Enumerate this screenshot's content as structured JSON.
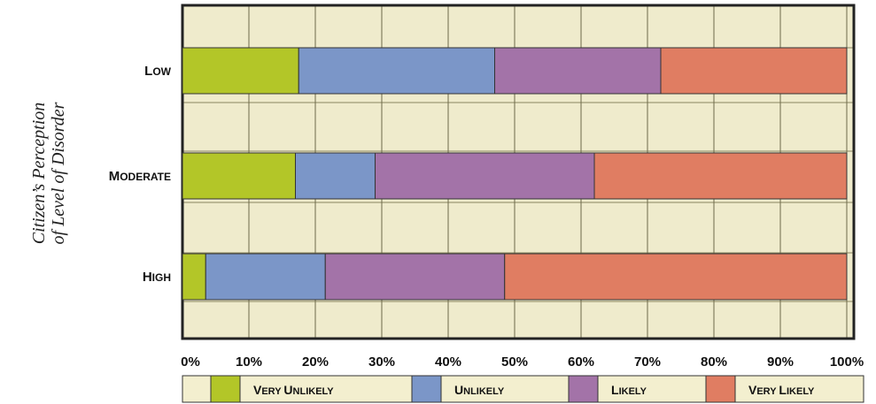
{
  "chart_data": {
    "type": "bar",
    "orientation": "horizontal",
    "stacked": true,
    "percent_stacked": true,
    "ylabel_lines": [
      "Citizen’s Perception",
      "of Level of Disorder"
    ],
    "categories": [
      "Low",
      "Moderate",
      "High"
    ],
    "series": [
      {
        "name": "Very Unlikely",
        "values": [
          17.5,
          17,
          3.5
        ]
      },
      {
        "name": "Unlikely",
        "values": [
          29.5,
          12,
          18
        ]
      },
      {
        "name": "Likely",
        "values": [
          25,
          33,
          27
        ]
      },
      {
        "name": "Very Likely",
        "values": [
          28,
          38,
          51.5
        ]
      }
    ],
    "xlim": [
      0,
      100
    ],
    "xticks": [
      "0%",
      "10%",
      "20%",
      "30%",
      "40%",
      "50%",
      "60%",
      "70%",
      "80%",
      "90%",
      "100%"
    ],
    "grid": true,
    "legend_position": "bottom",
    "colors": {
      "series": [
        "#b3c628",
        "#7b96c8",
        "#a373a8",
        "#e07d62"
      ],
      "plot_background": "#efebcc",
      "legend_background": "#f3efcf",
      "axis": "#222222"
    }
  }
}
